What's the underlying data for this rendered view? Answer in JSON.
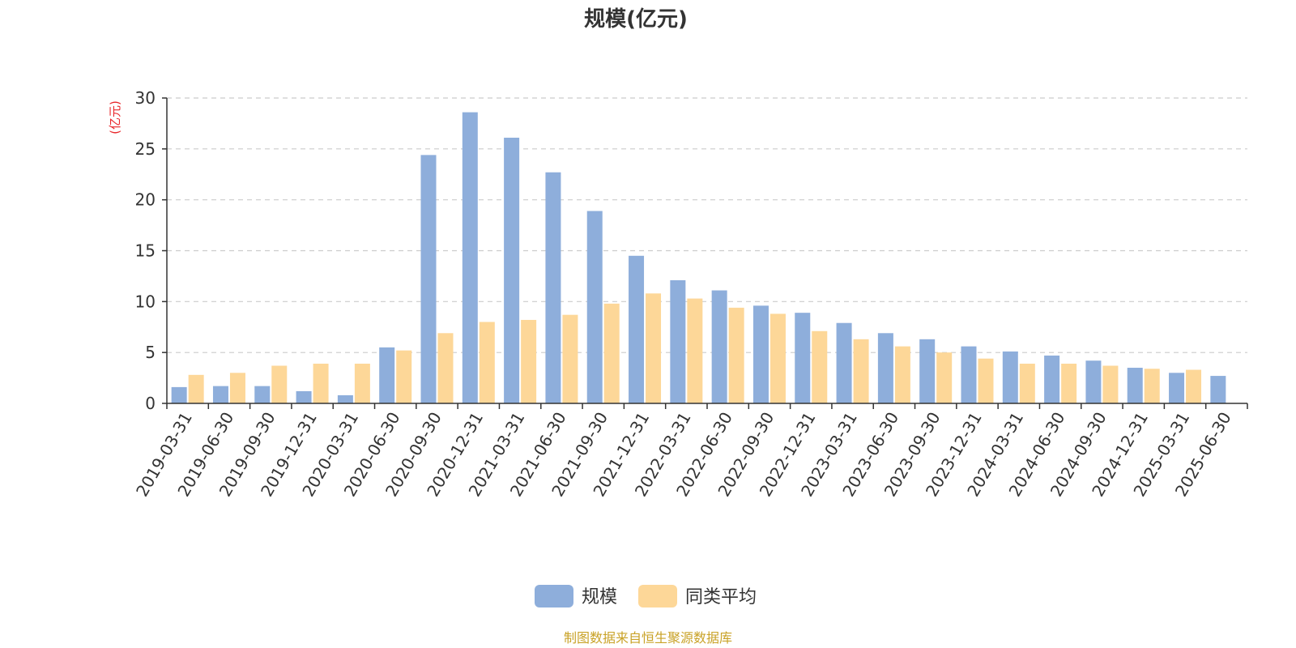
{
  "chart_data": {
    "type": "bar",
    "title": "规模(亿元)",
    "ylabel": "(亿元)",
    "ylim": [
      0,
      30
    ],
    "yticks": [
      "0",
      "5",
      "10",
      "15",
      "20",
      "25",
      "30"
    ],
    "grid": true,
    "legend_position": "bottom-center",
    "categories": [
      "2019-03-31",
      "2019-06-30",
      "2019-09-30",
      "2019-12-31",
      "2020-03-31",
      "2020-06-30",
      "2020-09-30",
      "2020-12-31",
      "2021-03-31",
      "2021-06-30",
      "2021-09-30",
      "2021-12-31",
      "2022-03-31",
      "2022-06-30",
      "2022-09-30",
      "2022-12-31",
      "2023-03-31",
      "2023-06-30",
      "2023-09-30",
      "2023-12-31",
      "2024-03-31",
      "2024-06-30",
      "2024-09-30",
      "2024-12-31",
      "2025-03-31",
      "2025-06-30"
    ],
    "series": [
      {
        "name": "规模",
        "color": "#8eaedb",
        "values": [
          1.6,
          1.7,
          1.7,
          1.2,
          0.8,
          5.5,
          24.4,
          28.6,
          26.1,
          22.7,
          18.9,
          14.5,
          12.1,
          11.1,
          9.6,
          8.9,
          7.9,
          6.9,
          6.3,
          5.6,
          5.1,
          4.7,
          4.2,
          3.5,
          3.0,
          2.7
        ]
      },
      {
        "name": "同类平均",
        "color": "#fdd798",
        "values": [
          2.8,
          3.0,
          3.7,
          3.9,
          3.9,
          5.2,
          6.9,
          8.0,
          8.2,
          8.7,
          9.8,
          10.8,
          10.3,
          9.4,
          8.8,
          7.1,
          6.3,
          5.6,
          5.0,
          4.4,
          3.9,
          3.9,
          3.7,
          3.4,
          3.3,
          null
        ]
      }
    ]
  },
  "footer": {
    "source": "制图数据来自恒生聚源数据库"
  }
}
